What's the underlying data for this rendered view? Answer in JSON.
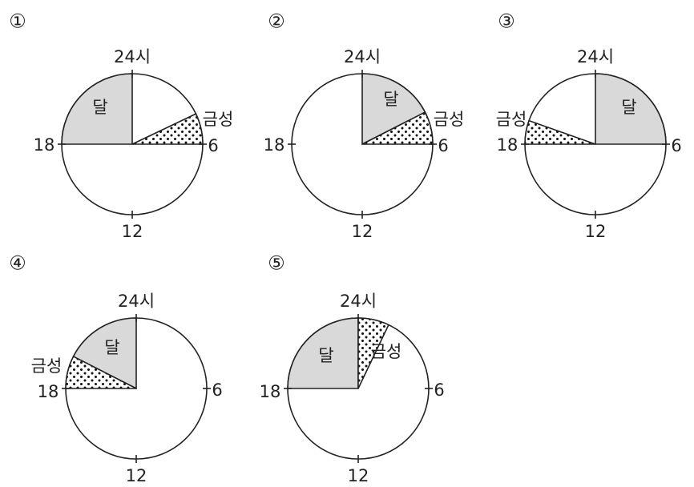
{
  "options": [
    {
      "number": "①",
      "top": "24시",
      "right": "6",
      "bottom": "12",
      "left": "18",
      "moon": "달",
      "venus": "금성"
    },
    {
      "number": "②",
      "top": "24시",
      "right": "6",
      "bottom": "12",
      "left": "18",
      "moon": "달",
      "venus": "금성"
    },
    {
      "number": "③",
      "top": "24시",
      "right": "6",
      "bottom": "12",
      "left": "18",
      "moon": "달",
      "venus": "금성"
    },
    {
      "number": "④",
      "top": "24시",
      "right": "6",
      "bottom": "12",
      "left": "18",
      "moon": "달",
      "venus": "금성"
    },
    {
      "number": "⑤",
      "top": "24시",
      "right": "6",
      "bottom": "12",
      "left": "18",
      "moon": "달",
      "venus": "금성"
    }
  ]
}
